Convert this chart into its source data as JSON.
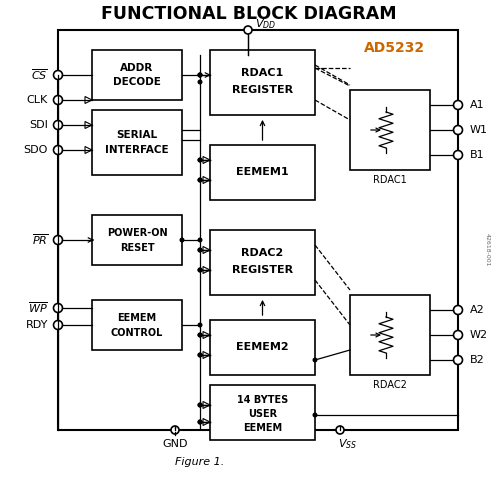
{
  "title": "FUNCTIONAL BLOCK DIAGRAM",
  "figure_label": "Figure 1.",
  "chip_label": "AD5232",
  "background_color": "#ffffff",
  "title_fontsize": 12.5,
  "chip_label_fontsize": 10,
  "fig_label_fontsize": 8,
  "note_text": "42618-001"
}
